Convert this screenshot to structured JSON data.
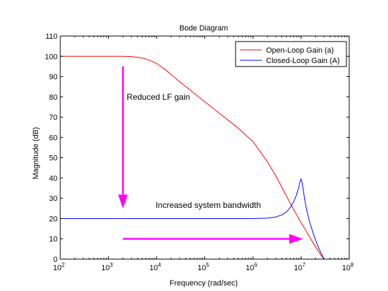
{
  "chart_data": {
    "type": "line",
    "title": "Bode Diagram",
    "xlabel": "Frequency  (rad/sec)",
    "ylabel": "Magnitude (dB)",
    "xscale": "log",
    "xlim": [
      100,
      100000000
    ],
    "ylim": [
      0,
      110
    ],
    "x_ticks": [
      100,
      1000,
      10000,
      100000,
      1000000,
      10000000,
      100000000
    ],
    "x_tick_labels": [
      {
        "base": "10",
        "exp": "2"
      },
      {
        "base": "10",
        "exp": "3"
      },
      {
        "base": "10",
        "exp": "4"
      },
      {
        "base": "10",
        "exp": "5"
      },
      {
        "base": "10",
        "exp": "6"
      },
      {
        "base": "10",
        "exp": "7"
      },
      {
        "base": "10",
        "exp": "8"
      }
    ],
    "y_ticks": [
      0,
      10,
      20,
      30,
      40,
      50,
      60,
      70,
      80,
      90,
      100,
      110
    ],
    "y_tick_labels": [
      "0",
      "10",
      "20",
      "30",
      "40",
      "50",
      "60",
      "70",
      "80",
      "90",
      "100",
      "110"
    ],
    "grid": false,
    "legend_position": "top-right",
    "series": [
      {
        "name": "Open-Loop Gain (a)",
        "color": "#ff0000",
        "points": [
          [
            100,
            100
          ],
          [
            1000,
            100
          ],
          [
            2000,
            100
          ],
          [
            3000,
            99.9
          ],
          [
            5000,
            99.2
          ],
          [
            7000,
            98.2
          ],
          [
            10000,
            96.5
          ],
          [
            15000,
            93.5
          ],
          [
            20000,
            91
          ],
          [
            30000,
            87.5
          ],
          [
            50000,
            83.3
          ],
          [
            70000,
            80.5
          ],
          [
            100000,
            77.6
          ],
          [
            200000,
            72
          ],
          [
            500000,
            64.5
          ],
          [
            1000000,
            58
          ],
          [
            2000000,
            48
          ],
          [
            3000000,
            41
          ],
          [
            5000000,
            31
          ],
          [
            7000000,
            24.5
          ],
          [
            10000000,
            18
          ],
          [
            15000000,
            11
          ],
          [
            20000000,
            6
          ],
          [
            25000000,
            2.5
          ],
          [
            30000000,
            0
          ]
        ]
      },
      {
        "name": "Closed-Loop Gain (A)",
        "color": "#0000ff",
        "points": [
          [
            100,
            20
          ],
          [
            1000000,
            20
          ],
          [
            2000000,
            20.2
          ],
          [
            3000000,
            20.8
          ],
          [
            4000000,
            21.8
          ],
          [
            5000000,
            23.3
          ],
          [
            6000000,
            25.5
          ],
          [
            7000000,
            28.2
          ],
          [
            8000000,
            31.5
          ],
          [
            9000000,
            35.5
          ],
          [
            9600000,
            38.5
          ],
          [
            10000000,
            39.5
          ],
          [
            10500000,
            38
          ],
          [
            11000000,
            34.8
          ],
          [
            12000000,
            29
          ],
          [
            13000000,
            24.5
          ],
          [
            15000000,
            18.5
          ],
          [
            18000000,
            12.5
          ],
          [
            20000000,
            9.5
          ],
          [
            23000000,
            5.8
          ],
          [
            26000000,
            3
          ],
          [
            30000000,
            0
          ]
        ]
      }
    ],
    "annotations": [
      {
        "text": "Reduced LF gain",
        "x": 2400,
        "y": 78.5
      },
      {
        "text": "Increased system bandwidth",
        "x": 9500,
        "y": 25.3
      }
    ],
    "arrows": [
      {
        "name": "down-arrow",
        "color": "#ff00ff",
        "from": [
          2000,
          95
        ],
        "to": [
          2000,
          25
        ]
      },
      {
        "name": "right-arrow",
        "color": "#ff00ff",
        "from": [
          2000,
          10
        ],
        "to": [
          11000000,
          10
        ]
      }
    ]
  }
}
